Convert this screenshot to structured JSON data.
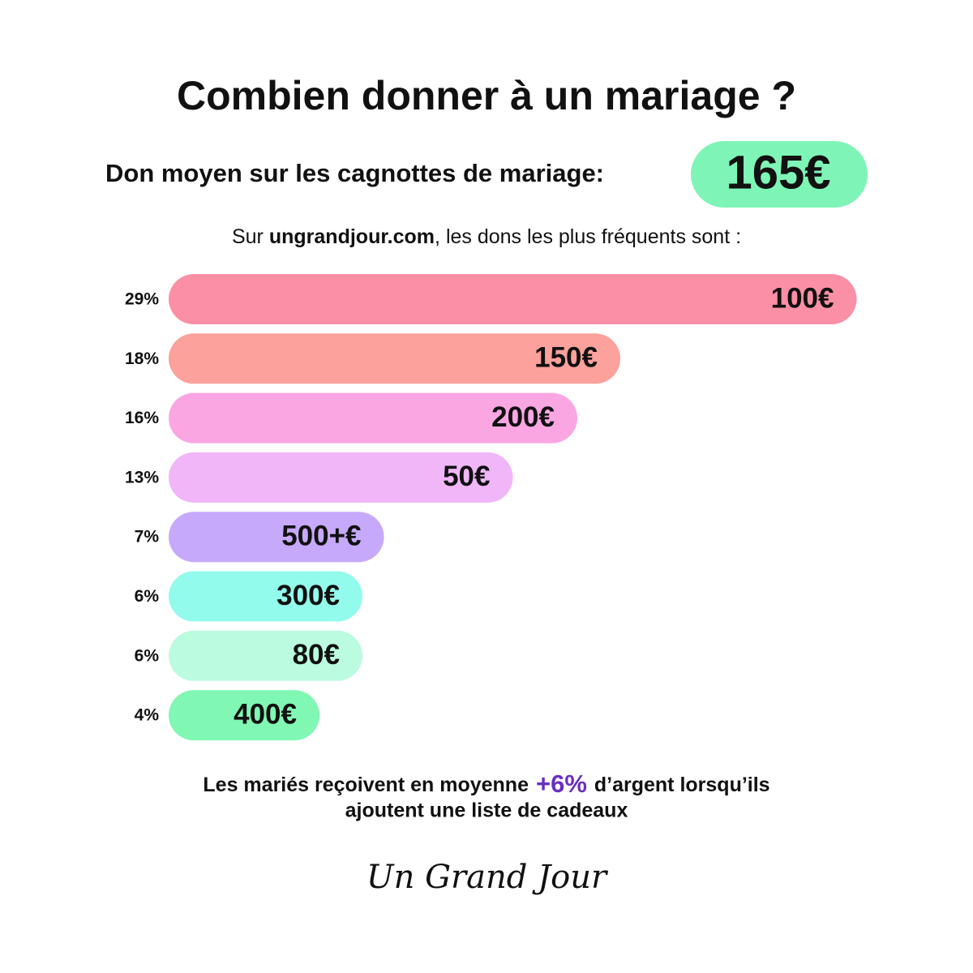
{
  "chart_data": {
    "type": "bar",
    "title": "Combien donner à un mariage ?",
    "subtitle": "Don moyen sur les cagnottes de mariage:",
    "highlight": "165€",
    "intro": {
      "before": "Sur",
      "link": "ungrandjour.com",
      "after": ", les dons les plus fréquents sont :"
    },
    "categories": [
      "100€",
      "150€",
      "200€",
      "50€",
      "500+€",
      "300€",
      "80€",
      "400€"
    ],
    "values": [
      29,
      18,
      16,
      13,
      7,
      6,
      6,
      4
    ],
    "value_labels": [
      "29%",
      "18%",
      "16%",
      "13%",
      "7%",
      "6%",
      "6%",
      "4%"
    ],
    "colors": [
      "#fb8fa6",
      "#fca19b",
      "#f9a6e3",
      "#f0b6f8",
      "#c6a9fa",
      "#93fbeb",
      "#bbfbdf",
      "#80f7b3"
    ],
    "note": {
      "before": "Les mariés reçoivent en moyenne",
      "highlight": "+6%",
      "after": "d’argent lorsqu’ils",
      "line2": "ajoutent une liste de cadeaux"
    },
    "brand": "Un Grand Jour"
  }
}
